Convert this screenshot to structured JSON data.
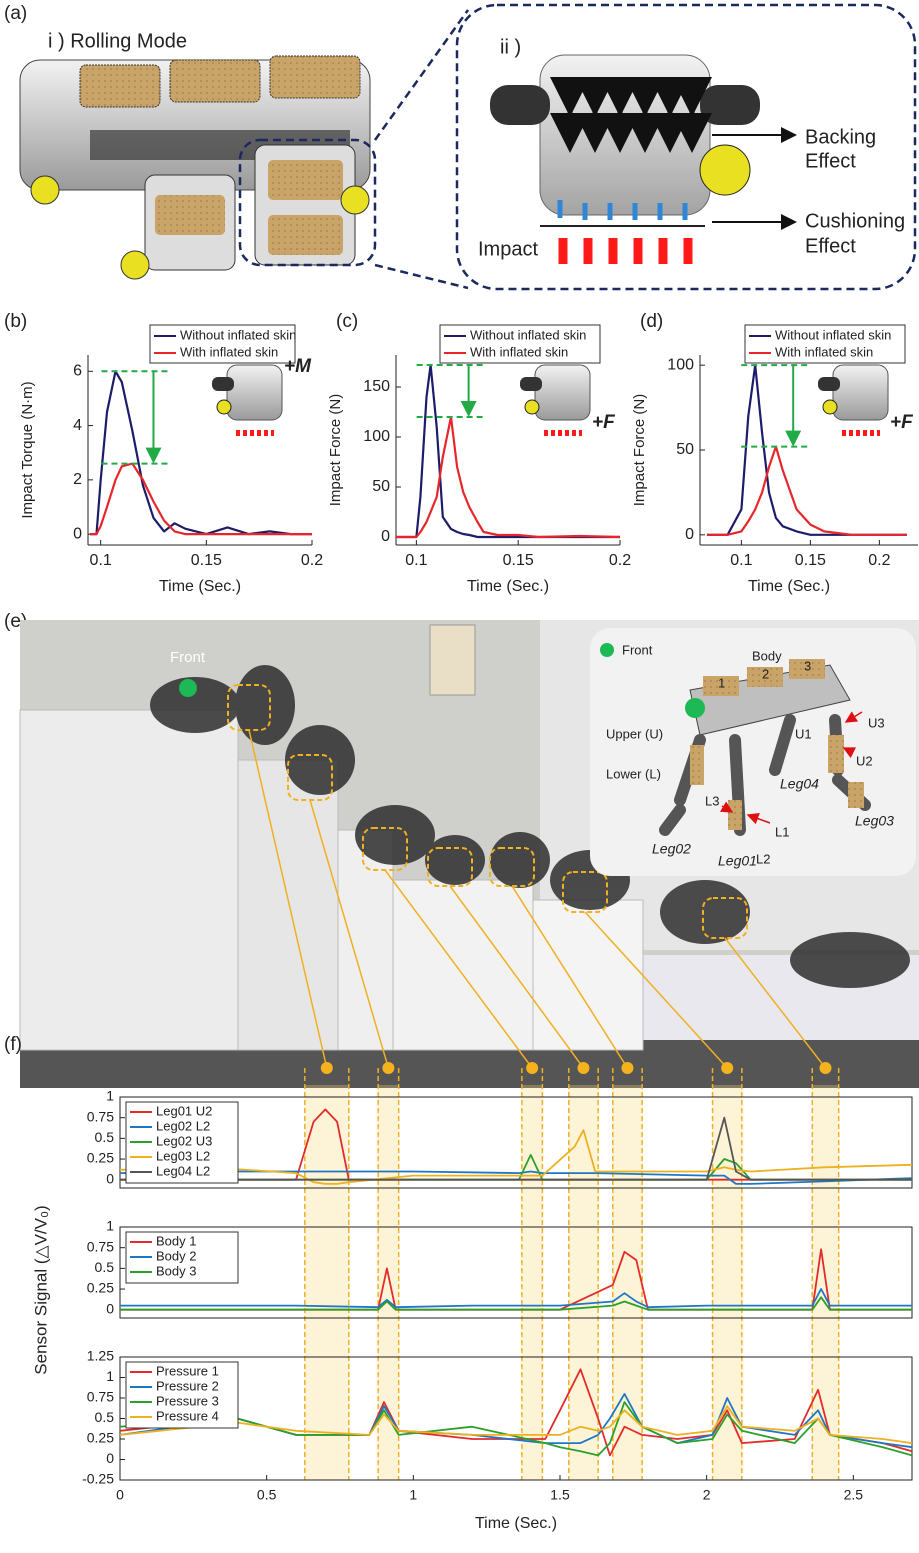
{
  "panel_a": {
    "label": "(a)",
    "mode": "i ) Rolling Mode",
    "detail": "ii )",
    "backing": [
      "Backing",
      "Effect"
    ],
    "cushioning": [
      "Cushioning",
      "Effect"
    ],
    "impact": "Impact"
  },
  "panel_e": {
    "label": "(e)",
    "front": "Front",
    "inset": {
      "front": "Front",
      "body": "Body",
      "pads": [
        "1",
        "2",
        "3"
      ],
      "upper": "Upper (U)",
      "lower": "Lower (L)",
      "legs": [
        "Leg01",
        "Leg02",
        "Leg03",
        "Leg04"
      ],
      "sensors": [
        "U1",
        "U2",
        "U3",
        "L1",
        "L2",
        "L3"
      ]
    }
  },
  "highlights": [
    [
      0.63,
      0.78
    ],
    [
      0.88,
      0.95
    ],
    [
      1.37,
      1.44
    ],
    [
      1.53,
      1.63
    ],
    [
      1.68,
      1.78
    ],
    [
      2.02,
      2.12
    ],
    [
      2.36,
      2.45
    ]
  ],
  "chart_data": [
    {
      "type": "line",
      "panel_label": "(b)",
      "xlabel": "Time (Sec.)",
      "ylabel": "Impact Torque (N·m)",
      "annotation": "+M",
      "legend": "top",
      "box": false,
      "xlim": [
        0.094,
        0.2
      ],
      "ylim": [
        -0.4,
        6.6
      ],
      "xticks": [
        0.1,
        0.15,
        0.2
      ],
      "yticks": [
        0,
        2,
        4,
        6
      ],
      "x": [
        0.095,
        0.098,
        0.1,
        0.103,
        0.107,
        0.11,
        0.115,
        0.12,
        0.125,
        0.13,
        0.135,
        0.14,
        0.15,
        0.16,
        0.17,
        0.18,
        0.19,
        0.2
      ],
      "series": [
        {
          "name": "Without inflated skin",
          "color": "#1c1c6b",
          "values": [
            0,
            0,
            2,
            4.5,
            6,
            5.6,
            3.8,
            1.8,
            0.6,
            0.1,
            0.4,
            0.2,
            0,
            0.25,
            0,
            0.1,
            0,
            0
          ]
        },
        {
          "name": "With inflated skin",
          "color": "#e8262a",
          "values": [
            0,
            0,
            0.3,
            1,
            2,
            2.5,
            2.6,
            2.0,
            1.2,
            0.5,
            0.1,
            0,
            0,
            0,
            0,
            0,
            0,
            0
          ]
        }
      ]
    },
    {
      "type": "line",
      "panel_label": "(c)",
      "xlabel": "Time (Sec.)",
      "ylabel": "Impact Force (N)",
      "annotation": "+F",
      "legend": "top",
      "box": false,
      "xlim": [
        0.09,
        0.2
      ],
      "ylim": [
        -8,
        182
      ],
      "xticks": [
        0.1,
        0.15,
        0.2
      ],
      "yticks": [
        0,
        50,
        100,
        150
      ],
      "x": [
        0.09,
        0.1,
        0.102,
        0.105,
        0.107,
        0.11,
        0.113,
        0.117,
        0.12,
        0.123,
        0.126,
        0.13,
        0.133,
        0.14,
        0.15,
        0.16,
        0.18,
        0.2
      ],
      "series": [
        {
          "name": "Without inflated skin",
          "color": "#1c1c6b",
          "values": [
            0,
            0,
            40,
            140,
            172,
            110,
            20,
            8,
            5,
            3,
            2,
            0,
            0,
            0,
            0,
            0,
            0,
            0
          ]
        },
        {
          "name": "With inflated skin",
          "color": "#e8262a",
          "values": [
            0,
            0,
            5,
            15,
            25,
            40,
            80,
            120,
            70,
            45,
            30,
            15,
            5,
            2,
            2,
            0,
            1,
            0
          ]
        }
      ]
    },
    {
      "type": "line",
      "panel_label": "(d)",
      "xlabel": "Time (Sec.)",
      "ylabel": "Impact Force (N)",
      "annotation": "+F",
      "legend": "top",
      "box": false,
      "xlim": [
        0.07,
        0.228
      ],
      "ylim": [
        -6,
        106
      ],
      "xticks": [
        0.1,
        0.15,
        0.2
      ],
      "yticks": [
        0,
        50,
        100
      ],
      "x": [
        0.075,
        0.09,
        0.1,
        0.105,
        0.11,
        0.115,
        0.12,
        0.125,
        0.13,
        0.14,
        0.15,
        0.16,
        0.18,
        0.2,
        0.22
      ],
      "series": [
        {
          "name": "Without inflated skin",
          "color": "#1c1c6b",
          "values": [
            0,
            0,
            15,
            70,
            100,
            60,
            25,
            10,
            5,
            2,
            0,
            0,
            0,
            0,
            0
          ]
        },
        {
          "name": "With inflated skin",
          "color": "#e8262a",
          "values": [
            0,
            0,
            2,
            8,
            15,
            25,
            40,
            52,
            38,
            15,
            6,
            2,
            0,
            0,
            0
          ]
        }
      ]
    },
    {
      "type": "line",
      "panel_label": "(f)",
      "legend": "upper left",
      "box": true,
      "xlim": [
        0,
        2.7
      ],
      "ylim": [
        -0.1,
        1
      ],
      "yticks": [
        0,
        0.25,
        0.5,
        0.75,
        1
      ],
      "x": [
        0,
        0.3,
        0.6,
        0.66,
        0.7,
        0.74,
        0.78,
        1.0,
        1.36,
        1.4,
        1.44,
        1.55,
        1.58,
        1.62,
        2.0,
        2.06,
        2.1,
        2.15,
        2.4,
        2.7
      ],
      "series": [
        {
          "name": "Leg01 U2",
          "color": "#e32b2b",
          "values": [
            0,
            0,
            0,
            0.7,
            0.85,
            0.7,
            0,
            0,
            0,
            0,
            0,
            0,
            0,
            0,
            0,
            0,
            0,
            0,
            0,
            0
          ]
        },
        {
          "name": "Leg02 L2",
          "color": "#1f77c4",
          "values": [
            0.08,
            0.1,
            0.1,
            0.1,
            0.1,
            0.1,
            0.1,
            0.1,
            0.08,
            0.1,
            0.08,
            0.08,
            0.08,
            0.08,
            0.05,
            0.05,
            -0.05,
            -0.05,
            -0.02,
            0.02
          ]
        },
        {
          "name": "Leg02 U3",
          "color": "#2ca02c",
          "values": [
            0,
            0,
            0,
            0,
            0,
            0,
            0,
            0,
            0,
            0.3,
            0,
            0,
            0,
            0,
            0,
            0.25,
            0.2,
            0,
            0,
            0
          ]
        },
        {
          "name": "Leg03 L2",
          "color": "#edb120",
          "values": [
            0.12,
            0.15,
            0.08,
            -0.03,
            -0.05,
            -0.05,
            -0.03,
            0.05,
            0.05,
            0.05,
            0.05,
            0.4,
            0.6,
            0.1,
            0.1,
            0.15,
            0.12,
            0.1,
            0.15,
            0.18
          ]
        },
        {
          "name": "Leg04 L2",
          "color": "#555555",
          "values": [
            0,
            0,
            0,
            0,
            0,
            0,
            0,
            0,
            0,
            0,
            0,
            0,
            0,
            0,
            0,
            0.75,
            0.1,
            0,
            0,
            0
          ]
        }
      ]
    },
    {
      "type": "line",
      "ylabel": "Sensor Signal (△V/V₀)",
      "legend": "upper left",
      "box": true,
      "xlim": [
        0,
        2.7
      ],
      "ylim": [
        -0.1,
        1
      ],
      "yticks": [
        0,
        0.25,
        0.5,
        0.75,
        1
      ],
      "x": [
        0,
        0.3,
        0.6,
        0.88,
        0.91,
        0.94,
        1.2,
        1.5,
        1.68,
        1.72,
        1.76,
        1.8,
        2.0,
        2.36,
        2.39,
        2.42,
        2.7
      ],
      "series": [
        {
          "name": "Body 1",
          "color": "#e32b2b",
          "values": [
            0,
            0,
            0,
            0,
            0.5,
            0,
            0,
            0,
            0.3,
            0.7,
            0.6,
            0,
            0,
            0,
            0.73,
            0,
            0
          ]
        },
        {
          "name": "Body 2",
          "color": "#1f77c4",
          "values": [
            0.05,
            0.05,
            0.05,
            0.03,
            0.12,
            0.03,
            0.05,
            0.05,
            0.1,
            0.2,
            0.1,
            0.03,
            0.05,
            0.05,
            0.25,
            0.05,
            0.05
          ]
        },
        {
          "name": "Body 3",
          "color": "#2ca02c",
          "values": [
            0,
            0,
            0,
            0,
            0.1,
            0,
            0,
            0,
            0.05,
            0.1,
            0.05,
            0,
            0,
            0,
            0.15,
            0,
            0
          ]
        }
      ]
    },
    {
      "type": "line",
      "xlabel": "Time (Sec.)",
      "legend": "upper left",
      "box": true,
      "xlim": [
        0,
        2.7
      ],
      "ylim": [
        -0.25,
        1.25
      ],
      "xticks": [
        0,
        0.5,
        1,
        1.5,
        2,
        2.5
      ],
      "yticks": [
        -0.25,
        0,
        0.25,
        0.5,
        0.75,
        1,
        1.25
      ],
      "x": [
        0,
        0.4,
        0.6,
        0.85,
        0.9,
        0.95,
        1.2,
        1.45,
        1.5,
        1.57,
        1.63,
        1.67,
        1.72,
        1.78,
        1.9,
        2.02,
        2.07,
        2.12,
        2.3,
        2.38,
        2.42,
        2.6,
        2.7
      ],
      "series": [
        {
          "name": "Pressure 1",
          "color": "#e32b2b",
          "values": [
            0.35,
            0.5,
            0.3,
            0.3,
            0.7,
            0.35,
            0.25,
            0.25,
            0.6,
            1.1,
            0.5,
            0.05,
            0.4,
            0.3,
            0.25,
            0.3,
            0.6,
            0.2,
            0.25,
            0.85,
            0.3,
            0.2,
            0.1
          ]
        },
        {
          "name": "Pressure 2",
          "color": "#1f77c4",
          "values": [
            0.3,
            0.5,
            0.3,
            0.3,
            0.65,
            0.35,
            0.3,
            0.2,
            0.2,
            0.2,
            0.3,
            0.5,
            0.8,
            0.4,
            0.2,
            0.3,
            0.75,
            0.4,
            0.3,
            0.6,
            0.3,
            0.2,
            0.15
          ]
        },
        {
          "name": "Pressure 3",
          "color": "#2ca02c",
          "values": [
            0.4,
            0.5,
            0.3,
            0.3,
            0.6,
            0.3,
            0.4,
            0.2,
            0.15,
            0.1,
            0.05,
            0.2,
            0.7,
            0.4,
            0.2,
            0.25,
            0.55,
            0.35,
            0.2,
            0.5,
            0.3,
            0.15,
            0.05
          ]
        },
        {
          "name": "Pressure 4",
          "color": "#edb120",
          "values": [
            0.3,
            0.45,
            0.35,
            0.3,
            0.55,
            0.35,
            0.3,
            0.3,
            0.3,
            0.4,
            0.35,
            0.4,
            0.6,
            0.4,
            0.3,
            0.35,
            0.65,
            0.4,
            0.35,
            0.5,
            0.3,
            0.25,
            0.2
          ]
        }
      ]
    }
  ]
}
